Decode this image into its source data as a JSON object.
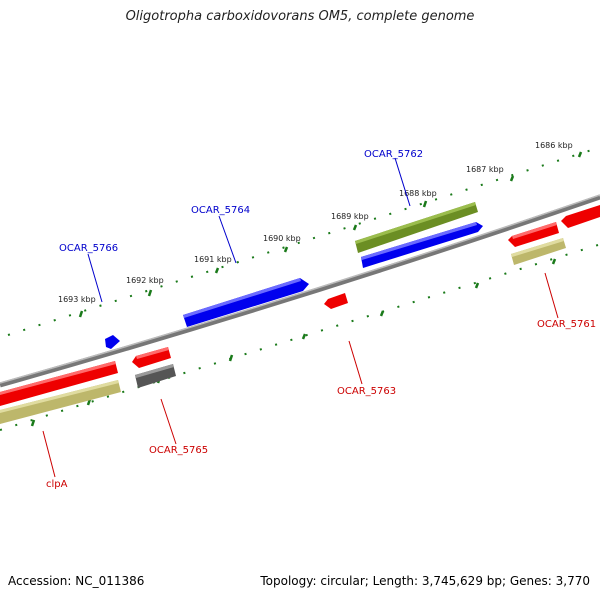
{
  "title": "Oligotropha carboxidovorans OM5, complete genome",
  "footer": {
    "accession": "Accession: NC_011386",
    "summary": "Topology: circular; Length: 3,745,629 bp; Genes: 3,770"
  },
  "colors": {
    "backbone": "#888888",
    "tick": "#1a7a1a",
    "forward_label": "#0000cc",
    "reverse_label": "#cc0000",
    "forward_gene": "#0000ee",
    "reverse_gene": "#ee0000",
    "olive_feature": "#6b8e23",
    "tan_feature": "#bdb76b",
    "gray_feature": "#555555"
  },
  "kbp_labels": [
    "1686 kbp",
    "1687 kbp",
    "1688 kbp",
    "1689 kbp",
    "1690 kbp",
    "1691 kbp",
    "1692 kbp",
    "1693 kbp"
  ],
  "gene_labels": [
    "OCAR_5762",
    "OCAR_5764",
    "OCAR_5766",
    "OCAR_5761",
    "OCAR_5763",
    "OCAR_5765",
    "clpA"
  ]
}
